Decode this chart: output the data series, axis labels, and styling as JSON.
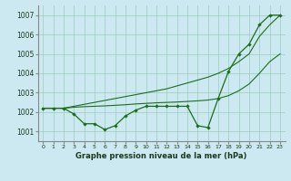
{
  "x": [
    0,
    1,
    2,
    3,
    4,
    5,
    6,
    7,
    8,
    9,
    10,
    11,
    12,
    13,
    14,
    15,
    16,
    17,
    18,
    19,
    20,
    21,
    22,
    23
  ],
  "main_y": [
    1002.2,
    1002.2,
    1002.2,
    1001.9,
    1001.4,
    1001.4,
    1001.1,
    1001.3,
    1001.8,
    1002.1,
    1002.3,
    1002.3,
    1002.3,
    1002.3,
    1002.3,
    1001.3,
    1001.2,
    1002.7,
    1004.1,
    1005.0,
    1005.5,
    1006.5,
    1007.0,
    1007.0
  ],
  "upper_y": [
    1002.2,
    1002.2,
    1002.2,
    1002.3,
    1002.4,
    1002.5,
    1002.6,
    1002.7,
    1002.8,
    1002.9,
    1003.0,
    1003.1,
    1003.2,
    1003.35,
    1003.5,
    1003.65,
    1003.8,
    1004.0,
    1004.25,
    1004.6,
    1005.0,
    1005.9,
    1006.5,
    1007.0
  ],
  "mid_y": [
    1002.2,
    1002.2,
    1002.2,
    1002.25,
    1002.28,
    1002.3,
    1002.32,
    1002.35,
    1002.38,
    1002.42,
    1002.45,
    1002.48,
    1002.5,
    1002.52,
    1002.55,
    1002.58,
    1002.62,
    1002.7,
    1002.85,
    1003.1,
    1003.45,
    1004.0,
    1004.6,
    1005.0
  ],
  "line_color": "#1a6e1a",
  "bg_color": "#cce8f0",
  "grid_color": "#99ccbb",
  "ylabel_ticks": [
    1001,
    1002,
    1003,
    1004,
    1005,
    1006,
    1007
  ],
  "ylim": [
    1000.5,
    1007.5
  ],
  "xlim": [
    -0.5,
    23.5
  ],
  "xlabel": "Graphe pression niveau de la mer (hPa)"
}
